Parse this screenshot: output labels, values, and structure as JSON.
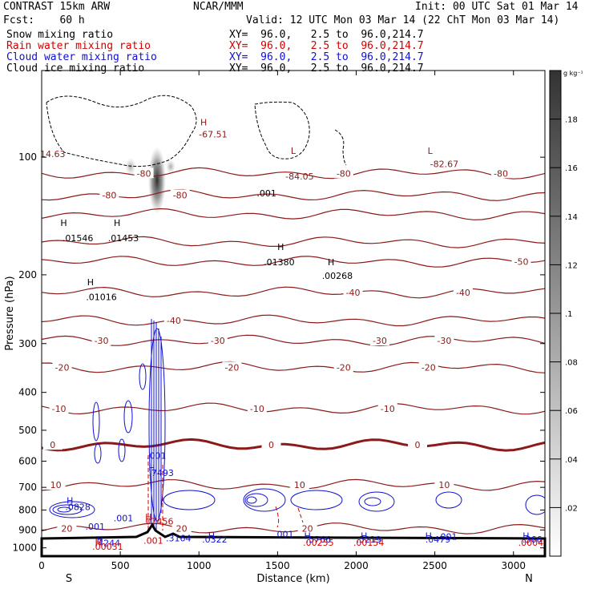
{
  "header": {
    "model": "CONTRAST 15km ARW",
    "org": "NCAR/MMM",
    "init": "Init: 00 UTC Sat 01 Mar 14",
    "fcst": "Fcst:    60 h",
    "valid": "Valid: 12 UTC Mon 03 Mar 14 (22 ChT Mon 03 Mar 14)",
    "fields": [
      {
        "name": "Snow mixing ratio",
        "xy": "XY=  96.0,   2.5 to  96.0,214.7",
        "color": "#000000"
      },
      {
        "name": "Rain water mixing ratio",
        "xy": "XY=  96.0,   2.5 to  96.0,214.7",
        "color": "#d00000"
      },
      {
        "name": "Cloud water mixing ratio",
        "xy": "XY=  96.0,   2.5 to  96.0,214.7",
        "color": "#1010d0"
      },
      {
        "name": "Cloud ice mixing ratio",
        "xy": "XY=  96.0,   2.5 to  96.0,214.7",
        "color": "#000000"
      }
    ]
  },
  "chart_data": {
    "type": "contour-cross-section",
    "xlabel": "Distance (km)",
    "ylabel": "Pressure (hPa)",
    "x_ticks": [
      0,
      500,
      1000,
      1500,
      2000,
      2500,
      3000
    ],
    "y_ticks": [
      100,
      200,
      300,
      400,
      500,
      600,
      700,
      800,
      900,
      1000
    ],
    "xlim": [
      0,
      3200
    ],
    "ylim": [
      1050,
      60
    ],
    "y_scale": "log",
    "end_labels": {
      "left": "S",
      "right": "N"
    },
    "colorbar": {
      "unit": "g kg⁻¹",
      "ticks": [
        ".02",
        ".04",
        ".06",
        ".08",
        ".1",
        ".12",
        ".14",
        ".16",
        ".18"
      ],
      "range": [
        0,
        0.2
      ]
    },
    "temperature_contours": [
      {
        "value": -80,
        "pressure": 110,
        "labels": [
          [
            650,
            "-80"
          ],
          [
            1920,
            "-80"
          ],
          [
            2920,
            "-80"
          ]
        ]
      },
      {
        "value": -80,
        "pressure": 125,
        "labels": [
          [
            430,
            "-80"
          ],
          [
            880,
            "-80"
          ]
        ]
      },
      {
        "value": -70,
        "pressure": 140,
        "labels": []
      },
      {
        "value": -60,
        "pressure": 165,
        "labels": []
      },
      {
        "value": -50,
        "pressure": 185,
        "labels": [
          [
            3050,
            "-50"
          ]
        ]
      },
      {
        "value": -40,
        "pressure": 222,
        "labels": [
          [
            1980,
            "-40"
          ],
          [
            2680,
            "-40"
          ]
        ]
      },
      {
        "value": -40,
        "pressure": 262,
        "labels": [
          [
            840,
            "-40"
          ]
        ]
      },
      {
        "value": -30,
        "pressure": 295,
        "labels": [
          [
            380,
            "-30"
          ],
          [
            1120,
            "-30"
          ],
          [
            2150,
            "-30"
          ],
          [
            2560,
            "-30"
          ]
        ]
      },
      {
        "value": -20,
        "pressure": 345,
        "labels": [
          [
            130,
            "-20"
          ],
          [
            1210,
            "-20"
          ],
          [
            1920,
            "-20"
          ],
          [
            2460,
            "-20"
          ]
        ]
      },
      {
        "value": -10,
        "pressure": 440,
        "labels": [
          [
            110,
            "-10"
          ],
          [
            1370,
            "-10"
          ],
          [
            2200,
            "-10"
          ]
        ]
      },
      {
        "value": 0,
        "pressure": 545,
        "labels": [
          [
            70,
            "0"
          ],
          [
            1460,
            "0"
          ],
          [
            2390,
            "0"
          ]
        ]
      },
      {
        "value": 10,
        "pressure": 690,
        "labels": [
          [
            90,
            "10"
          ],
          [
            1640,
            "10"
          ],
          [
            2560,
            "10"
          ]
        ]
      },
      {
        "value": 20,
        "pressure": 892,
        "labels": [
          [
            160,
            "20"
          ],
          [
            890,
            "20"
          ],
          [
            1690,
            "20"
          ]
        ]
      }
    ],
    "labels": [
      {
        "x": 70,
        "p": 100,
        "text": "14.63",
        "color": "#8b1a1a"
      },
      {
        "x": 1030,
        "p": 83,
        "text": "H",
        "color": "#8b1a1a"
      },
      {
        "x": 1090,
        "p": 89,
        "text": "-67.51",
        "color": "#8b1a1a"
      },
      {
        "x": 1600,
        "p": 98,
        "text": "L",
        "color": "#8b1a1a"
      },
      {
        "x": 1640,
        "p": 114,
        "text": "-84.05",
        "color": "#8b1a1a"
      },
      {
        "x": 2470,
        "p": 98,
        "text": "L",
        "color": "#8b1a1a"
      },
      {
        "x": 2560,
        "p": 106,
        "text": "-82.67",
        "color": "#8b1a1a"
      },
      {
        "x": 1430,
        "p": 126,
        "text": ".001",
        "color": "#000000"
      },
      {
        "x": 140,
        "p": 150,
        "text": "H",
        "color": "#000000"
      },
      {
        "x": 230,
        "p": 164,
        "text": ".01546",
        "color": "#000000"
      },
      {
        "x": 480,
        "p": 150,
        "text": "H",
        "color": "#000000"
      },
      {
        "x": 520,
        "p": 164,
        "text": ".01453",
        "color": "#000000"
      },
      {
        "x": 1520,
        "p": 173,
        "text": "H",
        "color": "#000000"
      },
      {
        "x": 1510,
        "p": 189,
        "text": ".01380",
        "color": "#000000"
      },
      {
        "x": 1840,
        "p": 189,
        "text": "H",
        "color": "#000000"
      },
      {
        "x": 1880,
        "p": 205,
        "text": ".00268",
        "color": "#000000"
      },
      {
        "x": 310,
        "p": 213,
        "text": "H",
        "color": "#000000"
      },
      {
        "x": 380,
        "p": 232,
        "text": ".01016",
        "color": "#000000"
      },
      {
        "x": 730,
        "p": 592,
        "text": ".001",
        "color": "#1010d0"
      },
      {
        "x": 700,
        "p": 635,
        "text": "H",
        "color": "#1010d0"
      },
      {
        "x": 760,
        "p": 655,
        "text": ".7493",
        "color": "#1010d0"
      },
      {
        "x": 180,
        "p": 771,
        "text": "H",
        "color": "#1010d0"
      },
      {
        "x": 230,
        "p": 800,
        "text": ".0828",
        "color": "#1010d0"
      },
      {
        "x": 520,
        "p": 855,
        "text": ".001",
        "color": "#1010d0"
      },
      {
        "x": 340,
        "p": 898,
        "text": ".001",
        "color": "#1010d0"
      },
      {
        "x": 680,
        "p": 848,
        "text": "H",
        "color": "#d00000"
      },
      {
        "x": 740,
        "p": 872,
        "text": ".07456",
        "color": "#d00000"
      },
      {
        "x": 1540,
        "p": 939,
        "text": ".001",
        "color": "#1010d0"
      },
      {
        "x": 1080,
        "p": 948,
        "text": "H",
        "color": "#1010d0"
      },
      {
        "x": 1100,
        "p": 968,
        "text": ".0322",
        "color": "#1010d0"
      },
      {
        "x": 870,
        "p": 962,
        "text": ".3164",
        "color": "#1010d0"
      },
      {
        "x": 710,
        "p": 975,
        "text": ".001",
        "color": "#d00000"
      },
      {
        "x": 370,
        "p": 968,
        "text": "H",
        "color": "#1010d0"
      },
      {
        "x": 420,
        "p": 990,
        "text": ".4244",
        "color": "#1010d0"
      },
      {
        "x": 360,
        "p": 985,
        "text": "H",
        "color": "#d00000"
      },
      {
        "x": 420,
        "p": 1010,
        "text": ".00031",
        "color": "#d00000"
      },
      {
        "x": 1690,
        "p": 948,
        "text": "H",
        "color": "#1010d0"
      },
      {
        "x": 1760,
        "p": 968,
        "text": ".5766",
        "color": "#1010d0"
      },
      {
        "x": 1760,
        "p": 988,
        "text": ".00255",
        "color": "#d00000"
      },
      {
        "x": 2050,
        "p": 948,
        "text": "H",
        "color": "#1010d0"
      },
      {
        "x": 2080,
        "p": 968,
        "text": ".5219",
        "color": "#1010d0"
      },
      {
        "x": 2080,
        "p": 988,
        "text": ".00154",
        "color": "#d00000"
      },
      {
        "x": 2460,
        "p": 948,
        "text": "H",
        "color": "#1010d0"
      },
      {
        "x": 2520,
        "p": 968,
        "text": ".0479",
        "color": "#1010d0"
      },
      {
        "x": 2580,
        "p": 953,
        "text": ".001",
        "color": "#1010d0"
      },
      {
        "x": 3080,
        "p": 948,
        "text": "H",
        "color": "#1010d0"
      },
      {
        "x": 3120,
        "p": 968,
        "text": ".366",
        "color": "#1010d0"
      },
      {
        "x": 3110,
        "p": 988,
        "text": ".0004",
        "color": "#d00000"
      }
    ]
  }
}
